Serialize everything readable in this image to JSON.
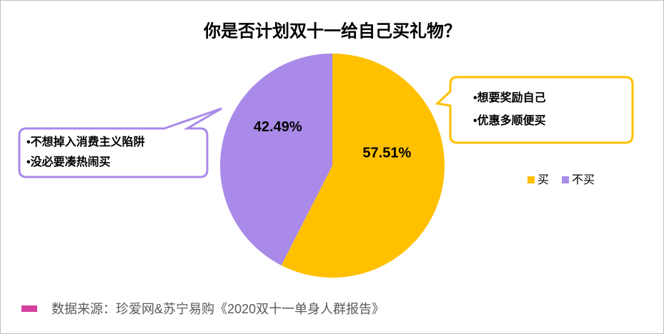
{
  "chart_data": {
    "type": "pie",
    "title": "你是否计划双十一给自己买礼物？",
    "categories": [
      "买",
      "不买"
    ],
    "values": [
      57.51,
      42.49
    ],
    "value_labels": [
      "57.51%",
      "42.49%"
    ],
    "colors": [
      "#ffc000",
      "#a98ae8"
    ],
    "legend": "right",
    "callouts": [
      {
        "lines": [
          "•想要奖励自己",
          "•优惠多顺便买"
        ],
        "color": "#ffc000"
      },
      {
        "lines": [
          "•不想掉入消费主义陷阱",
          "•没必要凑热闹买"
        ],
        "color": "#a98ae8"
      }
    ],
    "source": "数据来源：珍爱网&苏宁易购《2020双十一单身人群报告》"
  }
}
